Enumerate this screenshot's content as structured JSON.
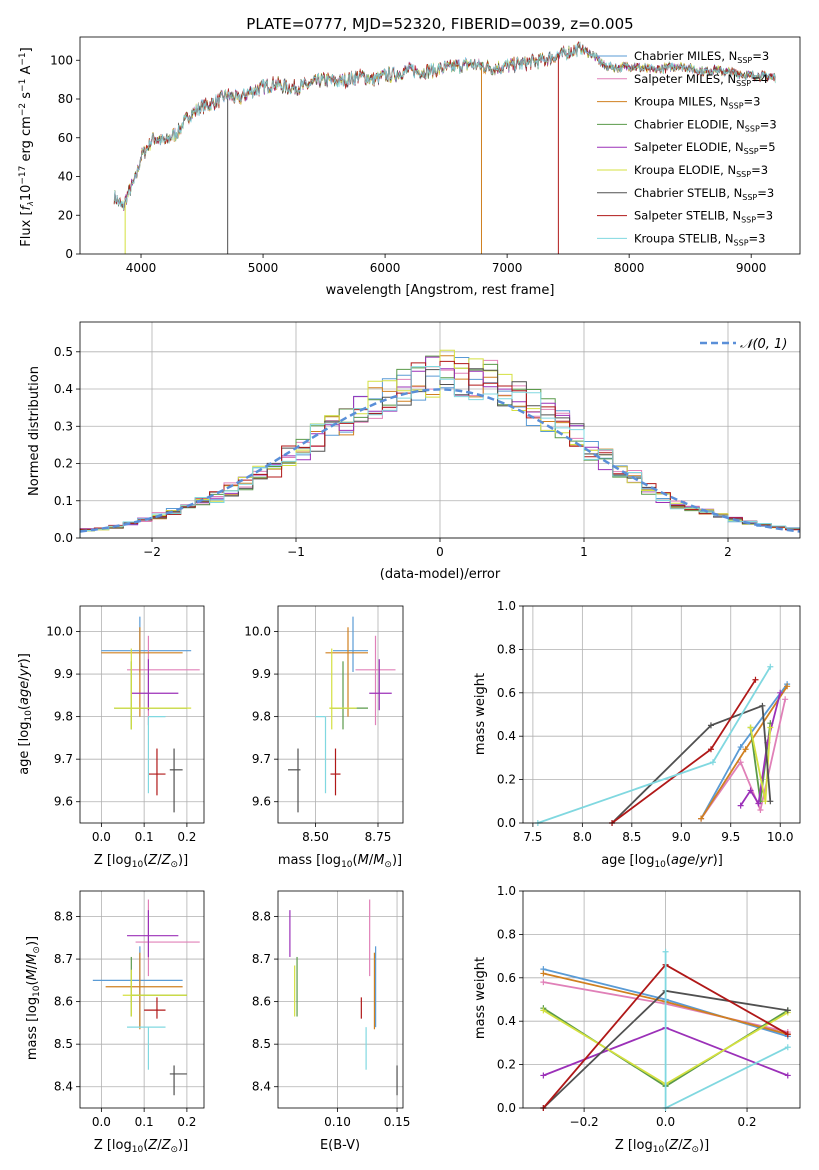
{
  "chart_data": [
    {
      "type": "line",
      "title": "PLATE=0777, MJD=52320, FIBERID=0039, z=0.005",
      "xlabel": "wavelength [Angstrom, rest frame]",
      "ylabel": "Flux [f_λ 10^-17 erg cm^-2 s^-1 A^-1]",
      "xlim": [
        3500,
        9400
      ],
      "ylim": [
        0,
        112
      ],
      "xticks": [
        "4000",
        "5000",
        "6000",
        "7000",
        "8000",
        "9000"
      ],
      "yticks": [
        "0",
        "20",
        "40",
        "60",
        "80",
        "100"
      ],
      "legend_position": "top-right",
      "spectrum_x": [
        3780,
        3850,
        3900,
        3950,
        4000,
        4100,
        4200,
        4300,
        4400,
        4500,
        4600,
        4700,
        4800,
        4900,
        5000,
        5100,
        5200,
        5300,
        5400,
        5500,
        5600,
        5700,
        5800,
        5900,
        6000,
        6100,
        6200,
        6300,
        6400,
        6500,
        6600,
        6700,
        6800,
        6900,
        7000,
        7100,
        7200,
        7300,
        7400,
        7500,
        7600,
        7700,
        7800,
        7900,
        8000,
        8100,
        8200,
        8300,
        8400,
        8500,
        8600,
        8700,
        8800,
        8900,
        9000,
        9100,
        9200
      ],
      "spectrum_y": [
        30,
        24,
        32,
        38,
        50,
        60,
        58,
        63,
        72,
        76,
        78,
        82,
        80,
        84,
        86,
        88,
        86,
        86,
        88,
        90,
        89,
        90,
        92,
        90,
        92,
        93,
        95,
        94,
        95,
        96,
        97,
        98,
        97,
        96,
        97,
        98,
        99,
        100,
        102,
        104,
        106,
        103,
        97,
        96,
        97,
        96,
        95,
        96,
        97,
        96,
        94,
        95,
        94,
        93,
        92,
        92,
        91
      ],
      "series": [
        {
          "name": "Chabrier MILES, N_SSP=3",
          "color": "#5a9bd5"
        },
        {
          "name": "Salpeter MILES, N_SSP=4",
          "color": "#e080b8"
        },
        {
          "name": "Kroupa MILES, N_SSP=3",
          "color": "#d08020"
        },
        {
          "name": "Chabrier ELODIE, N_SSP=3",
          "color": "#5a9a4a"
        },
        {
          "name": "Salpeter ELODIE, N_SSP=5",
          "color": "#9b30b8"
        },
        {
          "name": "Kroupa ELODIE, N_SSP=3",
          "color": "#d4e040"
        },
        {
          "name": "Chabrier STELIB, N_SSP=3",
          "color": "#505050"
        },
        {
          "name": "Salpeter STELIB, N_SSP=3",
          "color": "#b01818"
        },
        {
          "name": "Kroupa STELIB, N_SSP=3",
          "color": "#80d8e0"
        }
      ],
      "legend_labels": [
        "Chabrier MILES, N",
        "Salpeter MILES, N",
        "Kroupa MILES, N",
        "Chabrier ELODIE, N",
        "Salpeter ELODIE, N",
        "Kroupa ELODIE, N",
        "Chabrier STELIB, N",
        "Salpeter STELIB, N",
        "Kroupa STELIB, N"
      ],
      "legend_subscript": "SSP",
      "legend_counts": [
        "=3",
        "=4",
        "=3",
        "=3",
        "=5",
        "=3",
        "=3",
        "=3",
        "=3"
      ]
    },
    {
      "type": "line",
      "xlabel": "(data-model)/error",
      "ylabel": "Normed distribution",
      "xlim": [
        -2.5,
        2.5
      ],
      "ylim": [
        0,
        0.58
      ],
      "xticks": [
        "−2",
        "−1",
        "0",
        "1",
        "2"
      ],
      "yticks": [
        "0.0",
        "0.1",
        "0.2",
        "0.3",
        "0.4",
        "0.5"
      ],
      "legend": [
        "𝒩(0, 1)"
      ],
      "legend_position": "top-right",
      "model_curve": "gaussian mean 0 sigma 1 (dashed)",
      "histogram_bins": [
        -2.5,
        -2.4,
        -2.3,
        -2.2,
        -2.1,
        -2.0,
        -1.9,
        -1.8,
        -1.7,
        -1.6,
        -1.5,
        -1.4,
        -1.3,
        -1.2,
        -1.1,
        -1.0,
        -0.9,
        -0.8,
        -0.7,
        -0.6,
        -0.5,
        -0.4,
        -0.3,
        -0.2,
        -0.1,
        0.0,
        0.1,
        0.2,
        0.3,
        0.4,
        0.5,
        0.6,
        0.7,
        0.8,
        0.9,
        1.0,
        1.1,
        1.2,
        1.3,
        1.4,
        1.5,
        1.6,
        1.7,
        1.8,
        1.9,
        2.0,
        2.1,
        2.2,
        2.3,
        2.4,
        2.5
      ],
      "histogram_mean": [
        0.022,
        0.025,
        0.03,
        0.04,
        0.05,
        0.06,
        0.07,
        0.085,
        0.1,
        0.11,
        0.13,
        0.15,
        0.17,
        0.19,
        0.22,
        0.24,
        0.27,
        0.29,
        0.32,
        0.35,
        0.37,
        0.39,
        0.41,
        0.42,
        0.43,
        0.45,
        0.44,
        0.43,
        0.42,
        0.4,
        0.38,
        0.35,
        0.33,
        0.3,
        0.27,
        0.24,
        0.21,
        0.18,
        0.16,
        0.13,
        0.11,
        0.09,
        0.08,
        0.07,
        0.06,
        0.05,
        0.04,
        0.035,
        0.03,
        0.025
      ]
    },
    {
      "type": "scatter",
      "xlabel": "Z [log10(Z/Z⊙)]",
      "ylabel": "age  [log10(age/yr)]",
      "xlim": [
        -0.05,
        0.24
      ],
      "ylim": [
        9.55,
        10.06
      ],
      "xticks": [
        "0.0",
        "0.1",
        "0.2"
      ],
      "yticks": [
        "9.6",
        "9.7",
        "9.8",
        "9.9",
        "10.0"
      ],
      "points": [
        {
          "x": 0.09,
          "y": 9.955,
          "xerr": [
            0.09,
            0.12
          ],
          "yerr": [
            0.05,
            0.08
          ],
          "color": "#5a9bd5"
        },
        {
          "x": 0.11,
          "y": 9.91,
          "xerr": [
            0.05,
            0.12
          ],
          "yerr": [
            0.13,
            0.08
          ],
          "color": "#e080b8"
        },
        {
          "x": 0.09,
          "y": 9.95,
          "xerr": [
            0.09,
            0.1
          ],
          "yerr": [
            0.15,
            0.06
          ],
          "color": "#d08020"
        },
        {
          "x": 0.07,
          "y": 9.82,
          "xerr": [
            0.04,
            0.13
          ],
          "yerr": [
            0.05,
            0.11
          ],
          "color": "#5a9a4a"
        },
        {
          "x": 0.11,
          "y": 9.855,
          "xerr": [
            0.04,
            0.07
          ],
          "yerr": [
            0.04,
            0.08
          ],
          "color": "#9b30b8"
        },
        {
          "x": 0.07,
          "y": 9.82,
          "xerr": [
            0.04,
            0.14
          ],
          "yerr": [
            0.05,
            0.14
          ],
          "color": "#d4e040"
        },
        {
          "x": 0.17,
          "y": 9.675,
          "xerr": [
            0.01,
            0.02
          ],
          "yerr": [
            0.1,
            0.05
          ],
          "color": "#505050"
        },
        {
          "x": 0.13,
          "y": 9.665,
          "xerr": [
            0.02,
            0.02
          ],
          "yerr": [
            0.05,
            0.06
          ],
          "color": "#b01818"
        },
        {
          "x": 0.11,
          "y": 9.8,
          "xerr": [
            0.0,
            0.04
          ],
          "yerr": [
            0.18,
            0.0
          ],
          "color": "#80d8e0"
        }
      ]
    },
    {
      "type": "scatter",
      "xlabel": "mass [log10(M/M⊙)]",
      "ylabel": "",
      "xlim": [
        8.35,
        8.85
      ],
      "ylim": [
        9.55,
        10.06
      ],
      "xticks": [
        "8.50",
        "8.75"
      ],
      "yticks": [
        "9.6",
        "9.7",
        "9.8",
        "9.9",
        "10.0"
      ],
      "points": [
        {
          "x": 8.65,
          "y": 9.955,
          "xerr": [
            0.08,
            0.06
          ],
          "yerr": [
            0.05,
            0.08
          ],
          "color": "#5a9bd5"
        },
        {
          "x": 8.74,
          "y": 9.91,
          "xerr": [
            0.08,
            0.08
          ],
          "yerr": [
            0.13,
            0.08
          ],
          "color": "#e080b8"
        },
        {
          "x": 8.63,
          "y": 9.95,
          "xerr": [
            0.09,
            0.08
          ],
          "yerr": [
            0.15,
            0.06
          ],
          "color": "#d08020"
        },
        {
          "x": 8.61,
          "y": 9.82,
          "xerr": [
            0.05,
            0.1
          ],
          "yerr": [
            0.05,
            0.11
          ],
          "color": "#5a9a4a"
        },
        {
          "x": 8.755,
          "y": 9.855,
          "xerr": [
            0.04,
            0.05
          ],
          "yerr": [
            0.04,
            0.08
          ],
          "color": "#9b30b8"
        },
        {
          "x": 8.565,
          "y": 9.82,
          "xerr": [
            0.01,
            0.1
          ],
          "yerr": [
            0.05,
            0.14
          ],
          "color": "#d4e040"
        },
        {
          "x": 8.43,
          "y": 9.675,
          "xerr": [
            0.04,
            0.01
          ],
          "yerr": [
            0.1,
            0.05
          ],
          "color": "#505050"
        },
        {
          "x": 8.58,
          "y": 9.665,
          "xerr": [
            0.02,
            0.02
          ],
          "yerr": [
            0.05,
            0.06
          ],
          "color": "#b01818"
        },
        {
          "x": 8.54,
          "y": 9.8,
          "xerr": [
            0.04,
            0.0
          ],
          "yerr": [
            0.18,
            0.0
          ],
          "color": "#80d8e0"
        }
      ]
    },
    {
      "type": "line",
      "xlabel": "age  [log10(age/yr)]",
      "ylabel": "mass weight",
      "xlim": [
        7.4,
        10.2
      ],
      "ylim": [
        0,
        1.0
      ],
      "xticks": [
        "7.5",
        "8.0",
        "8.5",
        "9.0",
        "9.5",
        "10.0"
      ],
      "yticks": [
        "0.0",
        "0.2",
        "0.4",
        "0.6",
        "0.8",
        "1.0"
      ],
      "series": [
        {
          "color": "#5a9bd5",
          "x": [
            9.2,
            9.6,
            10.07
          ],
          "y": [
            0.02,
            0.35,
            0.64
          ]
        },
        {
          "color": "#e080b8",
          "x": [
            9.2,
            9.6,
            9.8,
            10.05
          ],
          "y": [
            0.02,
            0.28,
            0.06,
            0.57
          ]
        },
        {
          "color": "#d08020",
          "x": [
            9.2,
            9.65,
            10.07
          ],
          "y": [
            0.02,
            0.34,
            0.63
          ]
        },
        {
          "color": "#5a9a4a",
          "x": [
            9.7,
            9.8,
            9.9
          ],
          "y": [
            0.44,
            0.1,
            0.46
          ]
        },
        {
          "color": "#9b30b8",
          "x": [
            9.6,
            9.7,
            9.78,
            9.87,
            10.0
          ],
          "y": [
            0.08,
            0.15,
            0.09,
            0.37,
            0.6
          ]
        },
        {
          "color": "#d4e040",
          "x": [
            9.7,
            9.85,
            9.9
          ],
          "y": [
            0.44,
            0.1,
            0.44
          ]
        },
        {
          "color": "#505050",
          "x": [
            8.3,
            9.3,
            9.82,
            9.9
          ],
          "y": [
            0.0,
            0.45,
            0.54,
            0.1
          ]
        },
        {
          "color": "#b01818",
          "x": [
            8.3,
            9.3,
            9.75
          ],
          "y": [
            0.0,
            0.34,
            0.66
          ]
        },
        {
          "color": "#80d8e0",
          "x": [
            7.55,
            9.32,
            9.9
          ],
          "y": [
            0.0,
            0.28,
            0.72
          ]
        }
      ]
    },
    {
      "type": "scatter",
      "xlabel": "Z [log10(Z/Z⊙)]",
      "ylabel": "mass [log10(M/M⊙)]",
      "xlim": [
        -0.05,
        0.24
      ],
      "ylim": [
        8.35,
        8.86
      ],
      "xticks": [
        "0.0",
        "0.1",
        "0.2"
      ],
      "yticks": [
        "8.4",
        "8.5",
        "8.6",
        "8.7",
        "8.8"
      ],
      "points": [
        {
          "x": 0.09,
          "y": 8.65,
          "xerr": [
            0.11,
            0.1
          ],
          "yerr": [
            0.11,
            0.08
          ],
          "color": "#5a9bd5"
        },
        {
          "x": 0.11,
          "y": 8.74,
          "xerr": [
            0.03,
            0.12
          ],
          "yerr": [
            0.08,
            0.1
          ],
          "color": "#e080b8"
        },
        {
          "x": 0.09,
          "y": 8.635,
          "xerr": [
            0.08,
            0.1
          ],
          "yerr": [
            0.1,
            0.08
          ],
          "color": "#d08020"
        },
        {
          "x": 0.07,
          "y": 8.615,
          "xerr": [
            0.0,
            0.13
          ],
          "yerr": [
            0.05,
            0.09
          ],
          "color": "#5a9a4a"
        },
        {
          "x": 0.11,
          "y": 8.755,
          "xerr": [
            0.05,
            0.07
          ],
          "yerr": [
            0.05,
            0.06
          ],
          "color": "#9b30b8"
        },
        {
          "x": 0.07,
          "y": 8.615,
          "xerr": [
            0.02,
            0.13
          ],
          "yerr": [
            0.05,
            0.06
          ],
          "color": "#d4e040"
        },
        {
          "x": 0.17,
          "y": 8.43,
          "xerr": [
            0.01,
            0.03
          ],
          "yerr": [
            0.05,
            0.02
          ],
          "color": "#505050"
        },
        {
          "x": 0.13,
          "y": 8.58,
          "xerr": [
            0.03,
            0.02
          ],
          "yerr": [
            0.02,
            0.03
          ],
          "color": "#b01818"
        },
        {
          "x": 0.11,
          "y": 8.54,
          "xerr": [
            0.05,
            0.04
          ],
          "yerr": [
            0.1,
            0.0
          ],
          "color": "#80d8e0"
        }
      ]
    },
    {
      "type": "scatter",
      "xlabel": "E(B-V)",
      "ylabel": "",
      "xlim": [
        0.05,
        0.155
      ],
      "ylim": [
        8.35,
        8.86
      ],
      "xticks": [
        "0.10",
        "0.15"
      ],
      "yticks": [
        "8.4",
        "8.5",
        "8.6",
        "8.7",
        "8.8"
      ],
      "points": [
        {
          "x": 0.132,
          "y": 8.65,
          "yerr": [
            0.11,
            0.08
          ],
          "color": "#5a9bd5"
        },
        {
          "x": 0.127,
          "y": 8.74,
          "yerr": [
            0.08,
            0.1
          ],
          "color": "#e080b8"
        },
        {
          "x": 0.131,
          "y": 8.635,
          "yerr": [
            0.1,
            0.08
          ],
          "color": "#d08020"
        },
        {
          "x": 0.066,
          "y": 8.615,
          "yerr": [
            0.05,
            0.09
          ],
          "color": "#5a9a4a"
        },
        {
          "x": 0.06,
          "y": 8.755,
          "yerr": [
            0.05,
            0.06
          ],
          "color": "#9b30b8"
        },
        {
          "x": 0.064,
          "y": 8.615,
          "yerr": [
            0.05,
            0.07
          ],
          "color": "#d4e040"
        },
        {
          "x": 0.15,
          "y": 8.43,
          "yerr": [
            0.05,
            0.02
          ],
          "color": "#505050"
        },
        {
          "x": 0.12,
          "y": 8.58,
          "yerr": [
            0.02,
            0.03
          ],
          "color": "#b01818"
        },
        {
          "x": 0.124,
          "y": 8.54,
          "yerr": [
            0.1,
            0.0
          ],
          "color": "#80d8e0"
        }
      ]
    },
    {
      "type": "line",
      "xlabel": "Z [log10(Z/Z⊙)]",
      "ylabel": "mass weight",
      "xlim": [
        -0.35,
        0.33
      ],
      "ylim": [
        0,
        1.0
      ],
      "xticks": [
        "−0.2",
        "0.0",
        "0.2"
      ],
      "yticks": [
        "0.0",
        "0.2",
        "0.4",
        "0.6",
        "0.8",
        "1.0"
      ],
      "series": [
        {
          "color": "#5a9bd5",
          "x": [
            -0.3,
            0.0,
            0.3
          ],
          "y": [
            0.64,
            0.5,
            0.33
          ]
        },
        {
          "color": "#e080b8",
          "x": [
            -0.3,
            0.0,
            0.3
          ],
          "y": [
            0.58,
            0.48,
            0.35
          ]
        },
        {
          "color": "#d08020",
          "x": [
            -0.3,
            0.0,
            0.3
          ],
          "y": [
            0.62,
            0.49,
            0.34
          ]
        },
        {
          "color": "#5a9a4a",
          "x": [
            -0.3,
            0.0,
            0.3
          ],
          "y": [
            0.46,
            0.1,
            0.45
          ]
        },
        {
          "color": "#9b30b8",
          "x": [
            -0.3,
            0.0,
            0.3
          ],
          "y": [
            0.15,
            0.37,
            0.15
          ]
        },
        {
          "color": "#d4e040",
          "x": [
            -0.3,
            0.0,
            0.3
          ],
          "y": [
            0.45,
            0.11,
            0.44
          ]
        },
        {
          "color": "#505050",
          "x": [
            -0.3,
            0.0,
            0.3
          ],
          "y": [
            0.0,
            0.54,
            0.45
          ]
        },
        {
          "color": "#b01818",
          "x": [
            -0.3,
            0.0,
            0.3
          ],
          "y": [
            0.0,
            0.66,
            0.34
          ]
        },
        {
          "color": "#80d8e0",
          "x": [
            0.0,
            0.0,
            0.3
          ],
          "y": [
            0.72,
            0.0,
            0.28
          ]
        }
      ]
    }
  ]
}
